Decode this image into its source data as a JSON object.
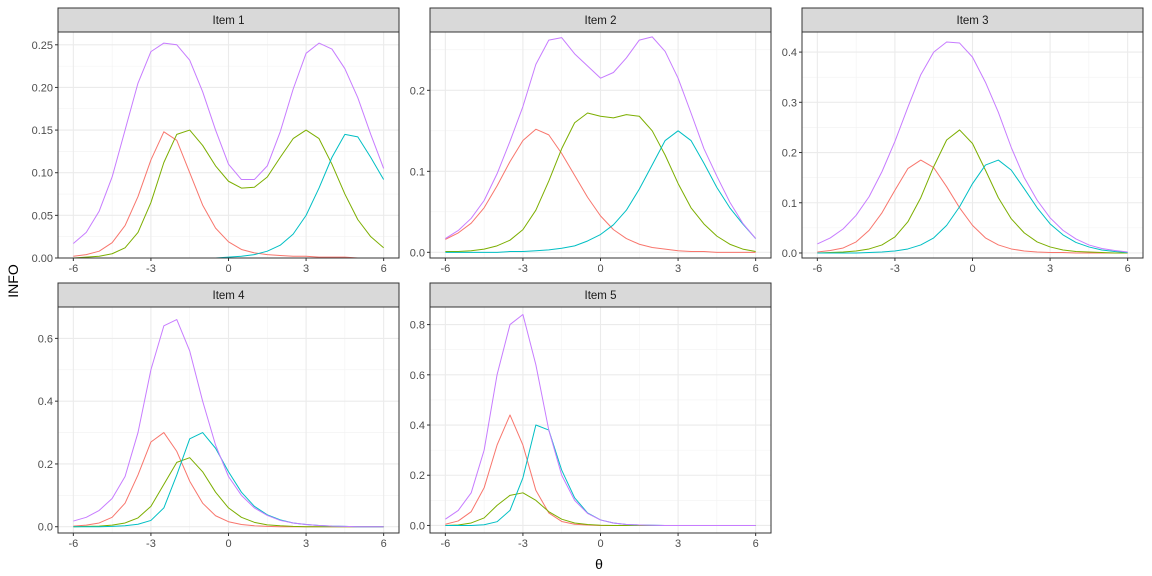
{
  "chart_data": {
    "type": "line",
    "xlabel": "θ",
    "ylabel": "INFO",
    "xlim": [
      -6,
      6
    ],
    "x_ticks": [
      -6,
      -3,
      0,
      3,
      6
    ],
    "grid": true,
    "legend": "none",
    "x_grid": [
      -6,
      -5.5,
      -5,
      -4.5,
      -4,
      -3.5,
      -3,
      -2.5,
      -2,
      -1.5,
      -1,
      -0.5,
      0,
      0.5,
      1,
      1.5,
      2,
      2.5,
      3,
      3.5,
      4,
      4.5,
      5,
      5.5,
      6
    ],
    "series_colors": [
      "#F8766D",
      "#7CAE00",
      "#00BFC4",
      "#C77CFF"
    ],
    "panels": [
      {
        "title": "Item 1",
        "ylim": [
          0,
          0.265
        ],
        "y_ticks": [
          0.0,
          0.05,
          0.1,
          0.15,
          0.2,
          0.25
        ],
        "y_tick_labels": [
          "0.00",
          "0.05",
          "0.10",
          "0.15",
          "0.20",
          "0.25"
        ],
        "series": [
          {
            "color": "#F8766D",
            "values": [
              0.002,
              0.004,
              0.008,
              0.018,
              0.038,
              0.072,
              0.115,
              0.148,
              0.138,
              0.1,
              0.062,
              0.035,
              0.019,
              0.01,
              0.006,
              0.004,
              0.003,
              0.002,
              0.002,
              0.001,
              0.001,
              0.001,
              0.0,
              0.0,
              0.0
            ]
          },
          {
            "color": "#7CAE00",
            "values": [
              0.0,
              0.001,
              0.002,
              0.005,
              0.012,
              0.03,
              0.065,
              0.112,
              0.145,
              0.15,
              0.132,
              0.108,
              0.09,
              0.082,
              0.083,
              0.095,
              0.118,
              0.14,
              0.15,
              0.14,
              0.11,
              0.075,
              0.045,
              0.025,
              0.012
            ]
          },
          {
            "color": "#00BFC4",
            "values": [
              0.0,
              0.0,
              0.0,
              0.0,
              0.0,
              0.0,
              0.0,
              0.0,
              0.0,
              0.0,
              0.0,
              0.0,
              0.001,
              0.002,
              0.004,
              0.008,
              0.015,
              0.028,
              0.05,
              0.082,
              0.118,
              0.145,
              0.142,
              0.118,
              0.092
            ]
          },
          {
            "color": "#C77CFF",
            "values": [
              0.017,
              0.03,
              0.055,
              0.095,
              0.15,
              0.205,
              0.242,
              0.252,
              0.25,
              0.232,
              0.195,
              0.15,
              0.11,
              0.092,
              0.092,
              0.108,
              0.148,
              0.198,
              0.24,
              0.252,
              0.245,
              0.222,
              0.188,
              0.145,
              0.105
            ]
          }
        ]
      },
      {
        "title": "Item 2",
        "ylim": [
          -0.007,
          0.272
        ],
        "y_ticks": [
          0.0,
          0.1,
          0.2
        ],
        "y_tick_labels": [
          "0.0",
          "0.1",
          "0.2"
        ],
        "series": [
          {
            "color": "#F8766D",
            "values": [
              0.016,
              0.024,
              0.036,
              0.055,
              0.082,
              0.112,
              0.138,
              0.152,
              0.145,
              0.122,
              0.095,
              0.068,
              0.045,
              0.028,
              0.017,
              0.01,
              0.006,
              0.004,
              0.002,
              0.001,
              0.001,
              0.0,
              0.0,
              0.0,
              0.0
            ]
          },
          {
            "color": "#7CAE00",
            "values": [
              0.001,
              0.001,
              0.002,
              0.004,
              0.008,
              0.015,
              0.028,
              0.052,
              0.088,
              0.128,
              0.16,
              0.172,
              0.168,
              0.166,
              0.17,
              0.168,
              0.15,
              0.12,
              0.085,
              0.055,
              0.035,
              0.02,
              0.01,
              0.004,
              0.001
            ]
          },
          {
            "color": "#00BFC4",
            "values": [
              0.0,
              0.0,
              0.0,
              0.0,
              0.0,
              0.001,
              0.001,
              0.002,
              0.003,
              0.005,
              0.008,
              0.014,
              0.022,
              0.034,
              0.052,
              0.078,
              0.108,
              0.138,
              0.15,
              0.138,
              0.11,
              0.08,
              0.055,
              0.035,
              0.017
            ]
          },
          {
            "color": "#C77CFF",
            "values": [
              0.017,
              0.027,
              0.042,
              0.064,
              0.097,
              0.137,
              0.18,
              0.232,
              0.262,
              0.265,
              0.245,
              0.23,
              0.215,
              0.222,
              0.24,
              0.262,
              0.266,
              0.248,
              0.215,
              0.172,
              0.128,
              0.094,
              0.062,
              0.036,
              0.017
            ]
          }
        ]
      },
      {
        "title": "Item 3",
        "ylim": [
          -0.01,
          0.44
        ],
        "y_ticks": [
          0.0,
          0.1,
          0.2,
          0.3,
          0.4
        ],
        "y_tick_labels": [
          "0.0",
          "0.1",
          "0.2",
          "0.3",
          "0.4"
        ],
        "series": [
          {
            "color": "#F8766D",
            "values": [
              0.002,
              0.005,
              0.01,
              0.022,
              0.045,
              0.08,
              0.125,
              0.168,
              0.185,
              0.17,
              0.132,
              0.09,
              0.055,
              0.03,
              0.016,
              0.008,
              0.004,
              0.002,
              0.001,
              0.001,
              0.0,
              0.0,
              0.0,
              0.0,
              0.0
            ]
          },
          {
            "color": "#7CAE00",
            "values": [
              0.0,
              0.001,
              0.002,
              0.004,
              0.008,
              0.016,
              0.032,
              0.062,
              0.11,
              0.172,
              0.225,
              0.245,
              0.218,
              0.165,
              0.11,
              0.068,
              0.04,
              0.022,
              0.012,
              0.006,
              0.003,
              0.002,
              0.001,
              0.0,
              0.0
            ]
          },
          {
            "color": "#00BFC4",
            "values": [
              0.0,
              0.0,
              0.0,
              0.0,
              0.001,
              0.002,
              0.004,
              0.008,
              0.016,
              0.03,
              0.055,
              0.092,
              0.138,
              0.175,
              0.185,
              0.165,
              0.128,
              0.09,
              0.058,
              0.036,
              0.021,
              0.012,
              0.006,
              0.003,
              0.001
            ]
          },
          {
            "color": "#C77CFF",
            "values": [
              0.018,
              0.03,
              0.048,
              0.075,
              0.112,
              0.162,
              0.222,
              0.29,
              0.355,
              0.4,
              0.42,
              0.418,
              0.39,
              0.34,
              0.28,
              0.21,
              0.15,
              0.105,
              0.07,
              0.045,
              0.028,
              0.016,
              0.009,
              0.005,
              0.002
            ]
          }
        ]
      },
      {
        "title": "Item 4",
        "ylim": [
          -0.02,
          0.7
        ],
        "y_ticks": [
          0.0,
          0.2,
          0.4,
          0.6
        ],
        "y_tick_labels": [
          "0.0",
          "0.2",
          "0.4",
          "0.6"
        ],
        "series": [
          {
            "color": "#F8766D",
            "values": [
              0.002,
              0.005,
              0.012,
              0.03,
              0.075,
              0.165,
              0.27,
              0.3,
              0.24,
              0.145,
              0.075,
              0.035,
              0.016,
              0.007,
              0.003,
              0.001,
              0.0,
              0.0,
              0.0,
              0.0,
              0.0,
              0.0,
              0.0,
              0.0,
              0.0
            ]
          },
          {
            "color": "#7CAE00",
            "values": [
              0.0,
              0.001,
              0.002,
              0.005,
              0.012,
              0.028,
              0.065,
              0.135,
              0.205,
              0.22,
              0.175,
              0.11,
              0.06,
              0.03,
              0.014,
              0.006,
              0.003,
              0.001,
              0.0,
              0.0,
              0.0,
              0.0,
              0.0,
              0.0,
              0.0
            ]
          },
          {
            "color": "#00BFC4",
            "values": [
              0.0,
              0.0,
              0.0,
              0.001,
              0.003,
              0.008,
              0.02,
              0.06,
              0.165,
              0.28,
              0.3,
              0.25,
              0.175,
              0.11,
              0.065,
              0.038,
              0.022,
              0.012,
              0.007,
              0.004,
              0.002,
              0.001,
              0.0,
              0.0,
              0.0
            ]
          },
          {
            "color": "#C77CFF",
            "values": [
              0.018,
              0.03,
              0.052,
              0.09,
              0.16,
              0.3,
              0.5,
              0.64,
              0.66,
              0.56,
              0.4,
              0.26,
              0.16,
              0.1,
              0.06,
              0.036,
              0.02,
              0.012,
              0.007,
              0.004,
              0.002,
              0.001,
              0.0,
              0.0,
              0.0
            ]
          }
        ]
      },
      {
        "title": "Item 5",
        "ylim": [
          -0.03,
          0.87
        ],
        "y_ticks": [
          0.0,
          0.2,
          0.4,
          0.6,
          0.8
        ],
        "y_tick_labels": [
          "0.0",
          "0.2",
          "0.4",
          "0.6",
          "0.8"
        ],
        "series": [
          {
            "color": "#F8766D",
            "values": [
              0.005,
              0.018,
              0.055,
              0.15,
              0.32,
              0.44,
              0.32,
              0.14,
              0.05,
              0.016,
              0.005,
              0.002,
              0.0,
              0.0,
              0.0,
              0.0,
              0.0,
              0.0,
              0.0,
              0.0,
              0.0,
              0.0,
              0.0,
              0.0,
              0.0
            ]
          },
          {
            "color": "#7CAE00",
            "values": [
              0.0,
              0.002,
              0.01,
              0.03,
              0.08,
              0.12,
              0.13,
              0.1,
              0.055,
              0.025,
              0.01,
              0.004,
              0.001,
              0.0,
              0.0,
              0.0,
              0.0,
              0.0,
              0.0,
              0.0,
              0.0,
              0.0,
              0.0,
              0.0,
              0.0
            ]
          },
          {
            "color": "#00BFC4",
            "values": [
              0.0,
              0.0,
              0.0,
              0.003,
              0.015,
              0.06,
              0.19,
              0.4,
              0.38,
              0.22,
              0.11,
              0.05,
              0.022,
              0.01,
              0.004,
              0.002,
              0.001,
              0.0,
              0.0,
              0.0,
              0.0,
              0.0,
              0.0,
              0.0,
              0.0
            ]
          },
          {
            "color": "#C77CFF",
            "values": [
              0.025,
              0.06,
              0.13,
              0.3,
              0.6,
              0.8,
              0.84,
              0.64,
              0.38,
              0.2,
              0.1,
              0.048,
              0.022,
              0.01,
              0.004,
              0.002,
              0.001,
              0.0,
              0.0,
              0.0,
              0.0,
              0.0,
              0.0,
              0.0,
              0.0
            ]
          }
        ]
      }
    ]
  }
}
